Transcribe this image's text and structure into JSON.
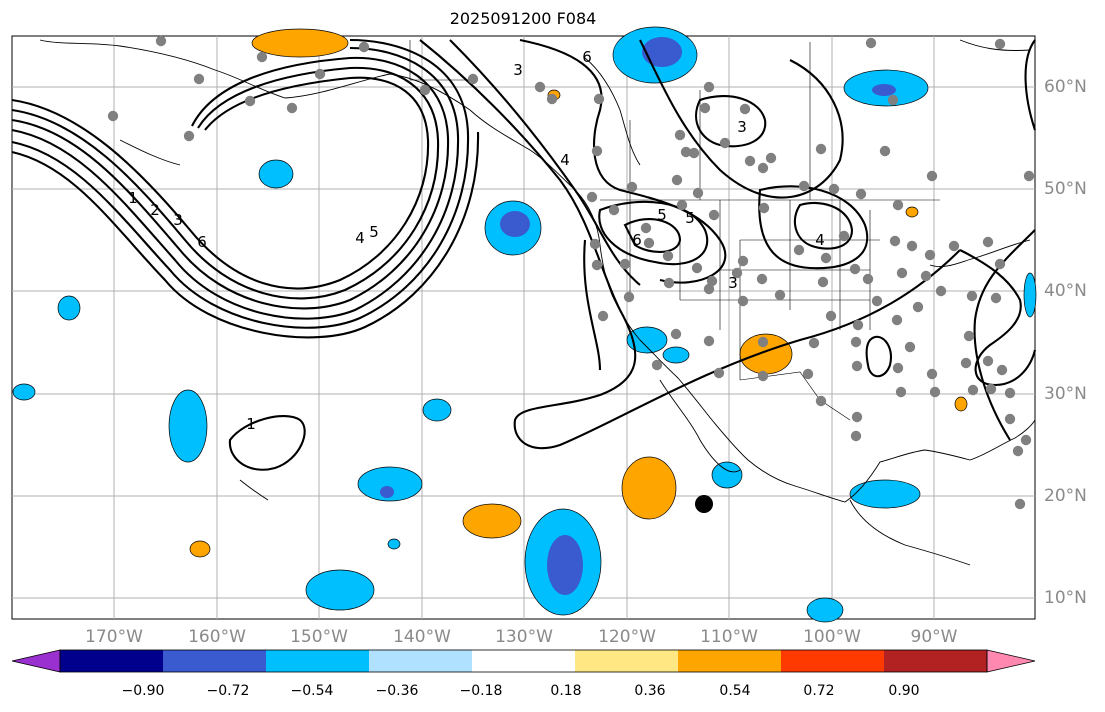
{
  "title": "2025091200 F084",
  "map": {
    "lon_labels": [
      "170°W",
      "160°W",
      "150°W",
      "140°W",
      "130°W",
      "120°W",
      "110°W",
      "100°W",
      "90°W"
    ],
    "lat_labels": [
      "60°N",
      "50°N",
      "40°N",
      "30°N",
      "20°N",
      "10°N"
    ],
    "extent": {
      "lon_min": -180,
      "lon_max": -80,
      "lat_min": 8,
      "lat_max": 65
    },
    "contour_labels": [
      "1",
      "2",
      "3",
      "4",
      "5",
      "6",
      "4",
      "3",
      "6",
      "5",
      "4",
      "3",
      "5",
      "6",
      "3",
      "1"
    ]
  },
  "colorbar": {
    "tick_labels": [
      "−0.90",
      "−0.72",
      "−0.54",
      "−0.36",
      "−0.18",
      "0.18",
      "0.36",
      "0.54",
      "0.72",
      "0.90"
    ],
    "colors": [
      "#9a30d0",
      "#00008c",
      "#3a5ad0",
      "#00bfff",
      "#b0e2ff",
      "#ffffff",
      "#ffe884",
      "#ffa500",
      "#ff3a00",
      "#b22222",
      "#ff88b0"
    ]
  },
  "colors": {
    "station_marker": "#808080",
    "contour_line": "#000000",
    "grid": "#b0b0b0",
    "negative_fill": "#00bfff",
    "negative_core": "#3a5ad0",
    "positive_fill": "#ffa500"
  }
}
